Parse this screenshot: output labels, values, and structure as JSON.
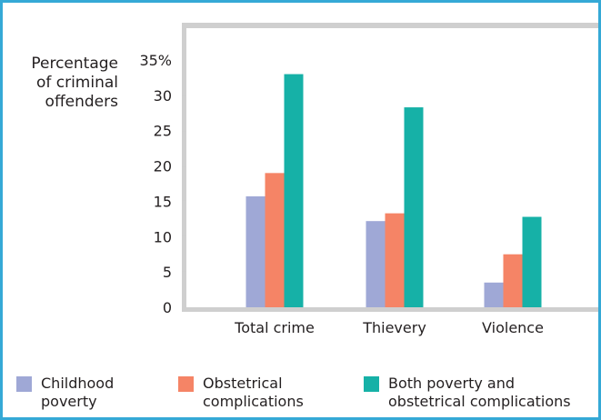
{
  "chart_data": {
    "type": "bar",
    "ylabel_lines": [
      "Percentage",
      "of criminal",
      "offenders"
    ],
    "categories": [
      "Total crime",
      "Thievery",
      "Violence"
    ],
    "series": [
      {
        "name_lines": [
          "Childhood",
          "poverty"
        ],
        "color": "#9fa8d6",
        "values": [
          15.7,
          12.2,
          3.5
        ]
      },
      {
        "name_lines": [
          "Obstetrical",
          "complications"
        ],
        "color": "#f58466",
        "values": [
          19,
          13.3,
          7.5
        ]
      },
      {
        "name_lines": [
          "Both poverty and",
          "obstetrical complications"
        ],
        "color": "#16b1a7",
        "values": [
          33,
          28.3,
          12.8
        ]
      }
    ],
    "yticks": [
      "0",
      "5",
      "10",
      "15",
      "20",
      "25",
      "30",
      "35%"
    ],
    "ylim": [
      0,
      35
    ],
    "grid": false,
    "legend": "bottom",
    "plot_background": "#cfcfcf"
  }
}
